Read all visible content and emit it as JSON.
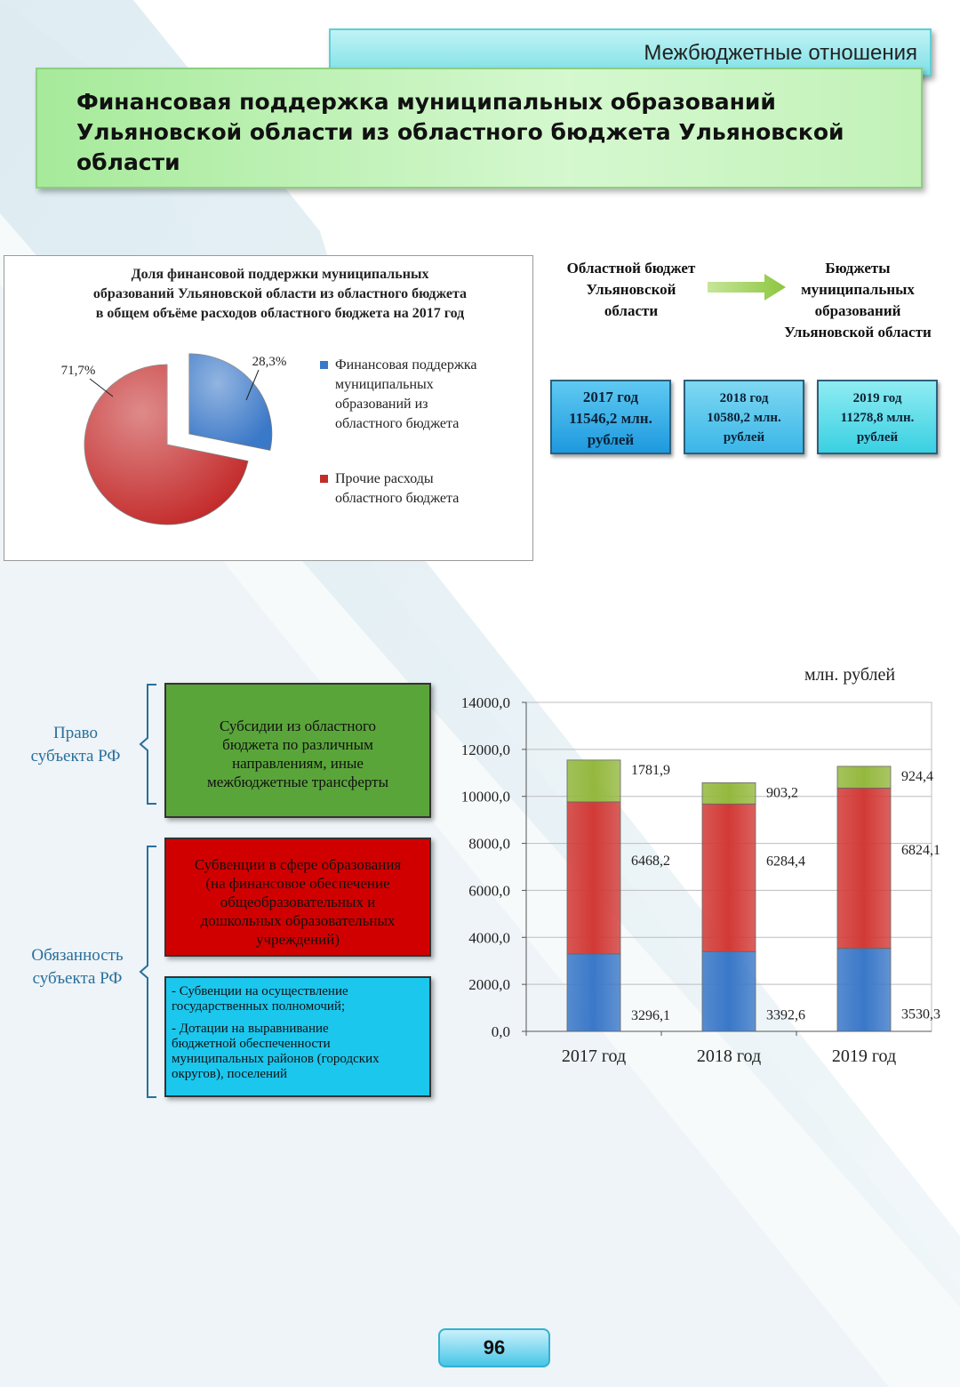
{
  "header": {
    "section": "Межбюджетные отношения",
    "title": "Финансовая поддержка муниципальных образований Ульяновской области из областного бюджета Ульяновской области"
  },
  "pie_chart": {
    "type": "pie",
    "title_lines": [
      "Доля финансовой поддержки муниципальных",
      "образований Ульяновской области из областного бюджета",
      "в общем объёме расходов областного бюджета на 2017 год"
    ],
    "slices": [
      {
        "name": "Финансовая поддержка муниципальных образований из областного бюджета",
        "value": 28.3,
        "label": "28,3%",
        "color": "#3a78c8",
        "legend_lines": [
          "Финансовая поддержка",
          "муниципальных",
          "образований из",
          "областного бюджета"
        ]
      },
      {
        "name": "Прочие расходы областного бюджета",
        "value": 71.7,
        "label": "71,7%",
        "color": "#c42b2b",
        "legend_lines": [
          "Прочие расходы",
          "областного бюджета"
        ]
      }
    ]
  },
  "flow": {
    "from_lines": [
      "Областной бюджет",
      "Ульяновской",
      "области"
    ],
    "to_lines": [
      "Бюджеты",
      "муниципальных",
      "образований",
      "Ульяновской области"
    ],
    "arrow_color": "#8cc63f"
  },
  "year_boxes": [
    {
      "year": "2017 год",
      "amount_lines": [
        "11546,2 млн.",
        "рублей"
      ]
    },
    {
      "year": "2018 год",
      "amount_lines": [
        "10580,2 млн.",
        "рублей"
      ]
    },
    {
      "year": "2019 год",
      "amount_lines": [
        "11278,8 млн.",
        "рублей"
      ]
    }
  ],
  "classification": {
    "right_label_lines": [
      "Право",
      "субъекта РФ"
    ],
    "duty_label_lines": [
      "Обязанность",
      "субъекта РФ"
    ],
    "subsidies_lines": [
      "Субсидии из областного",
      "бюджета по различным",
      "направлениям, иные",
      "межбюджетные трансферты"
    ],
    "subventions_edu_lines": [
      "Субвенции в сфере образования",
      "(на финансовое обеспечение",
      "общеобразовательных и",
      "дошкольных образовательных",
      "учреждений)"
    ],
    "other_item1_lines": [
      "- Субвенции на осуществление",
      "государственных полномочий;"
    ],
    "other_item2_lines": [
      "- Дотации на выравнивание",
      "бюджетной обеспеченности",
      "муниципальных районов (городских",
      "округов), поселений"
    ]
  },
  "chart_data": {
    "type": "bar",
    "stacked": true,
    "unit_label": "млн. рублей",
    "categories": [
      "2017 год",
      "2018 год",
      "2019 год"
    ],
    "ylim": [
      0,
      14000
    ],
    "yticks": [
      0,
      2000,
      4000,
      6000,
      8000,
      10000,
      12000,
      14000
    ],
    "ytick_labels": [
      "0,0",
      "2000,0",
      "4000,0",
      "6000,0",
      "8000,0",
      "10000,0",
      "12000,0",
      "14000,0"
    ],
    "grid": true,
    "series": [
      {
        "values": [
          3296.1,
          3392.6,
          3530.3
        ],
        "labels": [
          "3296,1",
          "3392,6",
          "3530,3"
        ],
        "color": "#3a78c8"
      },
      {
        "values": [
          6468.2,
          6284.4,
          6824.1
        ],
        "labels": [
          "6468,2",
          "6284,4",
          "6824,1"
        ],
        "color": "#d23a36"
      },
      {
        "values": [
          1781.9,
          903.2,
          924.4
        ],
        "labels": [
          "1781,9",
          "903,2",
          "924,4"
        ],
        "color": "#94b83e"
      }
    ]
  },
  "page": {
    "number": "96"
  }
}
